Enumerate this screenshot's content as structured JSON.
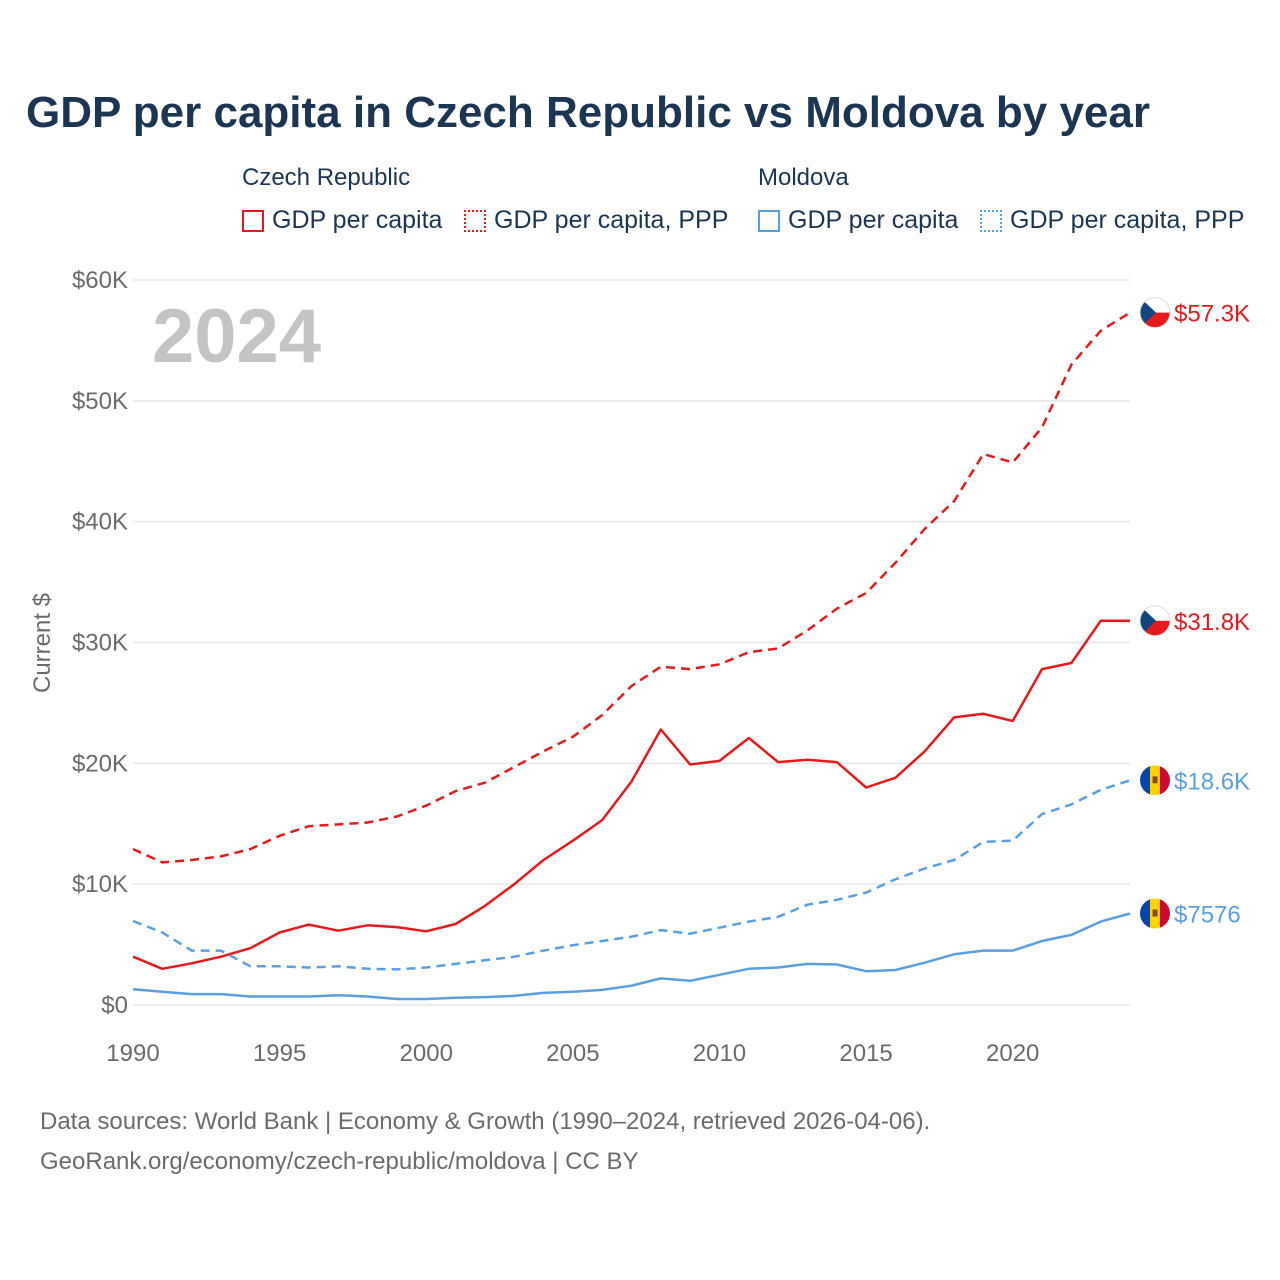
{
  "title": "GDP per capita in Czech Republic vs Moldova by year",
  "legend": {
    "czech_group": "Czech Republic",
    "moldova_group": "Moldova",
    "items": [
      {
        "label": "GDP per capita"
      },
      {
        "label": "GDP per capita, PPP"
      },
      {
        "label": "GDP per capita"
      },
      {
        "label": "GDP per capita, PPP"
      }
    ]
  },
  "colors": {
    "czech": "#e41a1c",
    "moldova": "#5b9fe3",
    "grid": "#e6e6e6",
    "axis_text": "#6b6b6b",
    "year_watermark": "#c4c4c4"
  },
  "chart_data": {
    "type": "line",
    "title": "GDP per capita in Czech Republic vs Moldova by year",
    "ylabel": "Current $",
    "xlabel": "",
    "xlim": [
      1990,
      2024
    ],
    "ylim": [
      0,
      60000
    ],
    "x_ticks": [
      "1990",
      "1995",
      "2000",
      "2005",
      "2010",
      "2015",
      "2020"
    ],
    "y_ticks": [
      {
        "value": 0,
        "label": "$0"
      },
      {
        "value": 10000,
        "label": "$10K"
      },
      {
        "value": 20000,
        "label": "$20K"
      },
      {
        "value": 30000,
        "label": "$30K"
      },
      {
        "value": 40000,
        "label": "$40K"
      },
      {
        "value": 50000,
        "label": "$50K"
      },
      {
        "value": 60000,
        "label": "$60K"
      }
    ],
    "year_label": "2024",
    "x": [
      1990,
      1991,
      1992,
      1993,
      1994,
      1995,
      1996,
      1997,
      1998,
      1999,
      2000,
      2001,
      2002,
      2003,
      2004,
      2005,
      2006,
      2007,
      2008,
      2009,
      2010,
      2011,
      2012,
      2013,
      2014,
      2015,
      2016,
      2017,
      2018,
      2019,
      2020,
      2021,
      2022,
      2023,
      2024
    ],
    "series": [
      {
        "name": "Czech Republic GDP per capita",
        "country": "czech",
        "style": "solid",
        "end_label": "$31.8K",
        "values": [
          4000,
          3000,
          3450,
          4000,
          4700,
          6000,
          6650,
          6150,
          6600,
          6450,
          6100,
          6700,
          8200,
          10000,
          12000,
          13600,
          15300,
          18500,
          22800,
          19900,
          20200,
          22100,
          20100,
          20300,
          20100,
          18000,
          18800,
          21000,
          23800,
          24100,
          23500,
          27800,
          28300,
          31800,
          31800
        ]
      },
      {
        "name": "Czech Republic GDP per capita, PPP",
        "country": "czech",
        "style": "dashed",
        "end_label": "$57.3K",
        "values": [
          12900,
          11800,
          12000,
          12300,
          12900,
          14000,
          14800,
          14950,
          15100,
          15600,
          16500,
          17700,
          18400,
          19700,
          21000,
          22200,
          24000,
          26400,
          28000,
          27800,
          28200,
          29200,
          29500,
          31000,
          32800,
          34100,
          36600,
          39400,
          41700,
          45600,
          44900,
          47800,
          53000,
          55800,
          57300
        ]
      },
      {
        "name": "Moldova GDP per capita",
        "country": "moldova",
        "style": "solid",
        "end_label": "$7576",
        "values": [
          1300,
          1100,
          900,
          900,
          700,
          700,
          700,
          800,
          700,
          500,
          500,
          600,
          650,
          750,
          1000,
          1100,
          1250,
          1600,
          2200,
          2000,
          2500,
          3000,
          3100,
          3400,
          3350,
          2800,
          2900,
          3500,
          4200,
          4500,
          4500,
          5300,
          5800,
          6900,
          7576
        ]
      },
      {
        "name": "Moldova GDP per capita, PPP",
        "country": "moldova",
        "style": "dashed",
        "end_label": "$18.6K",
        "values": [
          6950,
          6000,
          4500,
          4500,
          3200,
          3200,
          3100,
          3200,
          3000,
          2950,
          3100,
          3400,
          3700,
          4000,
          4500,
          4950,
          5300,
          5650,
          6200,
          5900,
          6400,
          6900,
          7300,
          8300,
          8700,
          9300,
          10400,
          11300,
          12000,
          13500,
          13600,
          15800,
          16600,
          17800,
          18600
        ]
      }
    ]
  },
  "footer": {
    "line1": "Data sources: World Bank | Economy & Growth (1990–2024, retrieved 2026-04-06).",
    "line2": "GeoRank.org/economy/czech-republic/moldova | CC BY"
  }
}
